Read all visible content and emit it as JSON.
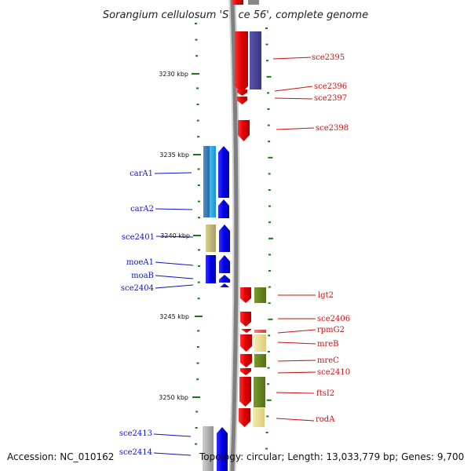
{
  "title": "Sorangium cellulosum 'So ce 56', complete genome",
  "footer": {
    "accession": "Accession: NC_010162",
    "summary": "Topology: circular; Length: 13,033,779 bp; Genes: 9,700"
  },
  "colors": {
    "backbone": "#808080",
    "reverse_label": "#1010cc",
    "forward_label": "#cc1010",
    "tick": "#1a7a1a"
  },
  "kbp_marks": [
    "3230 kbp",
    "3235 kbp",
    "3240 kbp",
    "3245 kbp",
    "3250 kbp"
  ],
  "genes_reverse": [
    {
      "label": "carA1",
      "color": "#1fa0e0"
    },
    {
      "label": "carA2",
      "color": "#1f7ec8"
    },
    {
      "label": "sce2401",
      "color": "#b8b070"
    },
    {
      "label": "moeA1",
      "color": "#0a0ae6"
    },
    {
      "label": "moaB",
      "color": "#0a0ae6"
    },
    {
      "label": "sce2404",
      "color": "#0a0ae6"
    },
    {
      "label": "sce2413",
      "color": "#b0b0b0"
    },
    {
      "label": "sce2414",
      "color": "#0a0ae6"
    }
  ],
  "genes_forward": [
    {
      "label": "sce2395",
      "color": "#e61010"
    },
    {
      "label": "sce2396",
      "color": "#e61010"
    },
    {
      "label": "sce2397",
      "color": "#e61010"
    },
    {
      "label": "sce2398",
      "color": "#e61010"
    },
    {
      "label": "lgt2",
      "color": "#6a8a20"
    },
    {
      "label": "sce2406",
      "color": "#e61010"
    },
    {
      "label": "rpmG2",
      "color": "#e06060"
    },
    {
      "label": "mreB",
      "color": "#e8dc8a"
    },
    {
      "label": "mreC",
      "color": "#6a8a20"
    },
    {
      "label": "sce2410",
      "color": "#e61010"
    },
    {
      "label": "ftsI2",
      "color": "#6a8a20"
    },
    {
      "label": "rodA",
      "color": "#e8dc8a"
    }
  ]
}
